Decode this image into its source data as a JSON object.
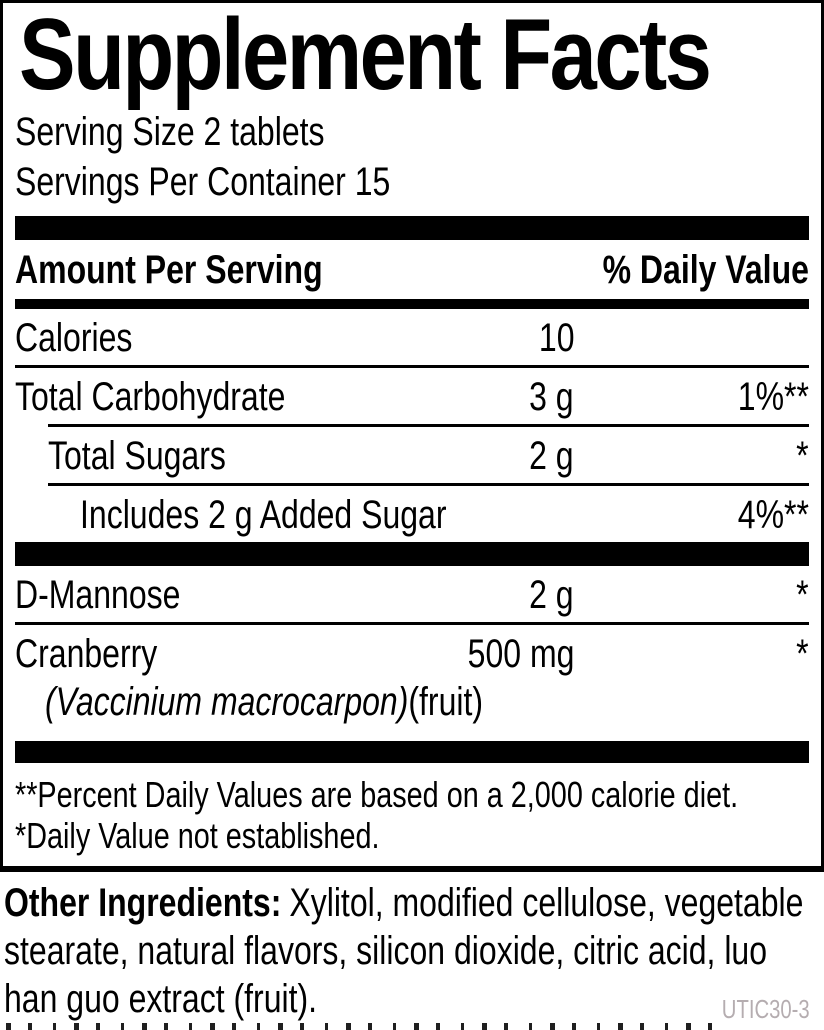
{
  "facts": {
    "title": "Supplement Facts",
    "serving_size": "Serving Size 2 tablets",
    "servings_per_container": "Servings Per Container 15",
    "columns": {
      "amount_header": "Amount Per Serving",
      "dv_header": "% Daily Value"
    },
    "rows": [
      {
        "name": "Calories",
        "amount": "10",
        "dv": ""
      },
      {
        "name": "Total Carbohydrate",
        "amount": "3 g",
        "dv": "1%**"
      },
      {
        "name": "Total Sugars",
        "amount": "2 g",
        "dv": "*"
      },
      {
        "name": "Includes 2 g Added Sugar",
        "amount": "",
        "dv": "4%**"
      },
      {
        "name": "D-Mannose",
        "amount": "2 g",
        "dv": "*"
      },
      {
        "name": "Cranberry",
        "amount": "500 mg",
        "dv": "*",
        "botanical_italic": "(Vaccinium macrocarpon)",
        "botanical_plain": "(fruit)"
      }
    ],
    "footnotes": [
      "**Percent Daily Values are based on a 2,000 calorie diet.",
      "*Daily Value not established."
    ],
    "other_ingredients": {
      "label": "Other Ingredients:",
      "text": "Xylitol, modified cellulose, vegetable stearate, natural flavors, silicon dioxide, citric acid, luo han guo extract (fruit)."
    },
    "code": "UTIC30-3",
    "colors": {
      "text": "#000000",
      "background": "#ffffff",
      "code_gray": "#b5adb0"
    }
  }
}
